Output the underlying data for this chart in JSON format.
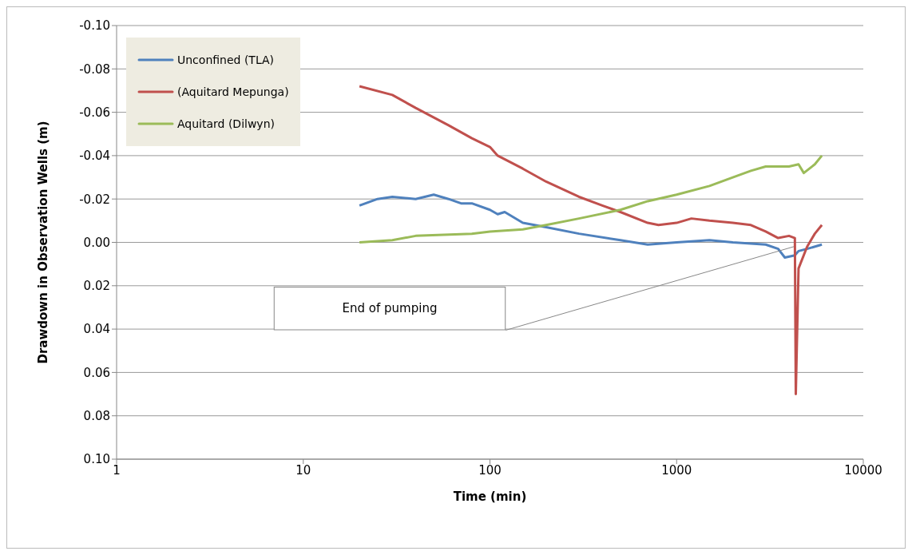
{
  "chart_data": {
    "type": "line",
    "xlabel": "Time (min)",
    "ylabel": "Drawdown in Observation Wells (m)",
    "log": "x",
    "grid": "y",
    "legend": "top left",
    "marker": "none",
    "line_style": "solid",
    "xlim": [
      1,
      10000
    ],
    "xticks": [
      1,
      10,
      100,
      1000,
      10000
    ],
    "ylim": [
      0.1,
      -0.1
    ],
    "yticks": [
      {
        "value": -0.1,
        "label": "-0.10"
      },
      {
        "value": -0.08,
        "label": "-0.08"
      },
      {
        "value": -0.06,
        "label": "-0.06"
      },
      {
        "value": -0.04,
        "label": "-0.04"
      },
      {
        "value": -0.02,
        "label": "-0.02"
      },
      {
        "value": 0,
        "label": "0.00"
      },
      {
        "value": 0.02,
        "label": "0.02"
      },
      {
        "value": 0.04,
        "label": "0.04"
      },
      {
        "value": 0.06,
        "label": "0.06"
      },
      {
        "value": 0.08,
        "label": "0.08"
      },
      {
        "value": 0.1,
        "label": "0.10"
      }
    ],
    "annotations": [
      "End of pumping"
    ],
    "series": [
      {
        "name": "Unconfined (TLA)",
        "color": "#4f81bd",
        "x": [
          20,
          25,
          30,
          40,
          50,
          60,
          70,
          80,
          100,
          110,
          120,
          150,
          200,
          300,
          500,
          700,
          1000,
          1500,
          2000,
          3000,
          3500,
          3800,
          4300,
          4500,
          5000,
          6000
        ],
        "values": [
          -0.017,
          -0.02,
          -0.021,
          -0.02,
          -0.022,
          -0.02,
          -0.018,
          -0.018,
          -0.015,
          -0.013,
          -0.014,
          -0.009,
          -0.007,
          -0.004,
          -0.001,
          0.001,
          0.0,
          -0.001,
          0.0,
          0.001,
          0.003,
          0.007,
          0.006,
          0.004,
          0.003,
          0.001
        ]
      },
      {
        "name": "(Aquitard Mepunga)",
        "color": "#c0504d",
        "x": [
          20,
          30,
          40,
          60,
          80,
          100,
          110,
          150,
          200,
          300,
          400,
          500,
          700,
          800,
          1000,
          1200,
          1500,
          2000,
          2500,
          3000,
          3500,
          4000,
          4300,
          4350,
          4500,
          5000,
          5500,
          6000
        ],
        "values": [
          -0.072,
          -0.068,
          -0.062,
          -0.054,
          -0.048,
          -0.044,
          -0.04,
          -0.034,
          -0.028,
          -0.021,
          -0.017,
          -0.014,
          -0.009,
          -0.008,
          -0.009,
          -0.011,
          -0.01,
          -0.009,
          -0.008,
          -0.005,
          -0.002,
          -0.003,
          -0.002,
          0.07,
          0.012,
          0.002,
          -0.004,
          -0.008
        ]
      },
      {
        "name": "Aquitard (Dilwyn)",
        "color": "#9bbb59",
        "x": [
          20,
          30,
          40,
          80,
          100,
          150,
          200,
          300,
          500,
          700,
          1000,
          1500,
          2000,
          2500,
          3000,
          4000,
          4500,
          4800,
          5500,
          6000
        ],
        "values": [
          0.0,
          -0.001,
          -0.003,
          -0.004,
          -0.005,
          -0.006,
          -0.008,
          -0.011,
          -0.015,
          -0.019,
          -0.022,
          -0.026,
          -0.03,
          -0.033,
          -0.035,
          -0.035,
          -0.036,
          -0.032,
          -0.036,
          -0.04
        ]
      }
    ]
  }
}
